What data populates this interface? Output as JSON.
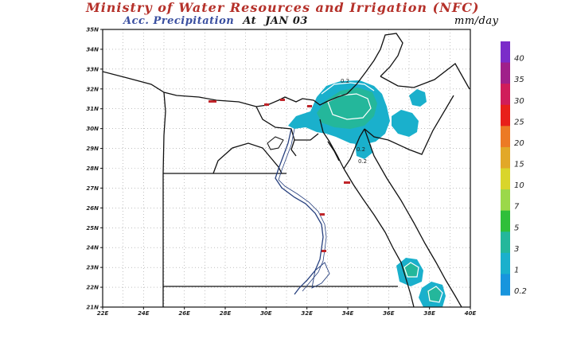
{
  "header": {
    "title": "Ministry of Water Resources and Irrigation (NFC)",
    "subtitle_label": "Acc. Precipitation",
    "subtitle_at": "At",
    "date": "JAN 03",
    "units": "mm/day"
  },
  "colors": {
    "title": "#b5312a",
    "subtitle": "#3a4fa0",
    "border": "#111111",
    "river": "#27407e"
  },
  "axes": {
    "lat_labels": [
      "35N",
      "34N",
      "33N",
      "32N",
      "31N",
      "30N",
      "29N",
      "28N",
      "27N",
      "26N",
      "25N",
      "24N",
      "23N",
      "22N",
      "21N"
    ],
    "lon_labels": [
      "22E",
      "24E",
      "26E",
      "28E",
      "30E",
      "32E",
      "34E",
      "36E",
      "38E",
      "40E"
    ],
    "lat_range": [
      21,
      35
    ],
    "lon_range": [
      22,
      40
    ],
    "grid": "dotted"
  },
  "contour_labels": [
    "0.2",
    "0.2",
    "0.2"
  ],
  "colorbar": {
    "levels": [
      "40",
      "35",
      "30",
      "25",
      "20",
      "15",
      "10",
      "7",
      "5",
      "3",
      "1",
      "0.2"
    ],
    "colors": [
      "#7b2cc9",
      "#a0208a",
      "#d01d5a",
      "#e8201a",
      "#ec7a25",
      "#e2a828",
      "#d9d52b",
      "#9bd84a",
      "#2fbf3a",
      "#24b79b",
      "#1ab0cc",
      "#1895dd"
    ]
  },
  "precip_areas": [
    {
      "name": "delta-sinai",
      "value": "1"
    },
    {
      "name": "northern-sinai-core",
      "value": "3"
    },
    {
      "name": "gulf-of-aqaba",
      "value": "1"
    },
    {
      "name": "north-jordan",
      "value": "1"
    },
    {
      "name": "red-sea-south-1",
      "value": "3"
    },
    {
      "name": "red-sea-south-2",
      "value": "3"
    }
  ]
}
